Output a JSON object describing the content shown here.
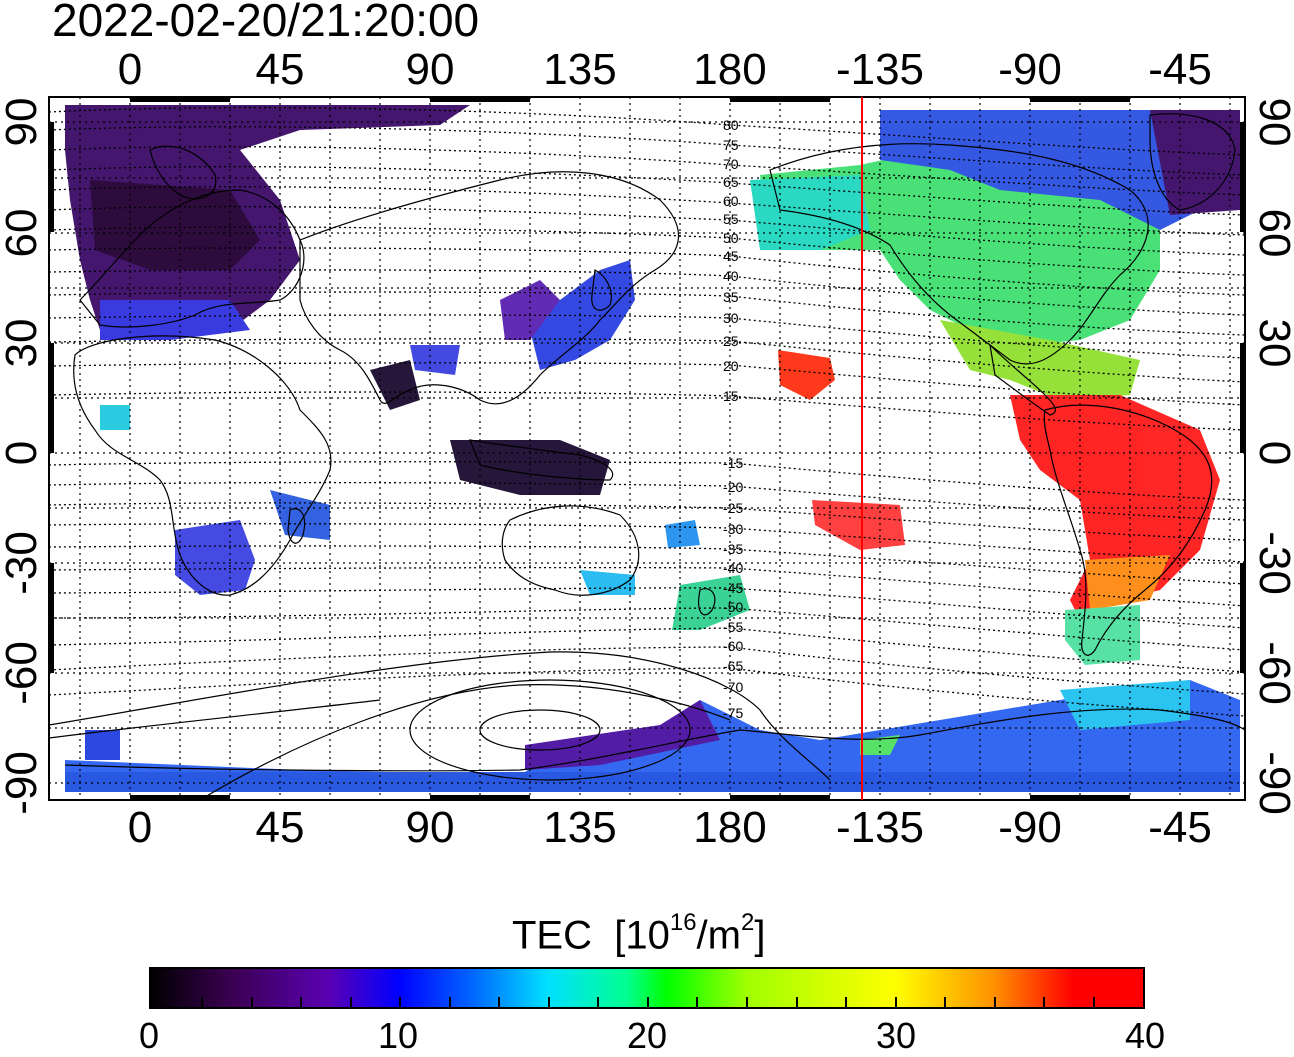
{
  "title": "2022-02-20/21:20:00",
  "axes": {
    "top_ticks": [
      "0",
      "45",
      "90",
      "135",
      "180",
      "-135",
      "-90",
      "-45"
    ],
    "bottom_ticks": [
      "0",
      "45",
      "90",
      "135",
      "180",
      "-135",
      "-90",
      "-45"
    ],
    "left_ticks": [
      "90",
      "60",
      "30",
      "0",
      "-30",
      "-60",
      "-90"
    ],
    "right_ticks": [
      "90",
      "60",
      "30",
      "0",
      "-30",
      "-60",
      "-90"
    ],
    "lon_range": [
      -20,
      340
    ],
    "lat_range": [
      -93,
      93
    ],
    "grid": "dotted"
  },
  "contour_labels": [
    "80",
    "75",
    "70",
    "65",
    "60",
    "55",
    "50",
    "45",
    "40",
    "35",
    "30",
    "25",
    "20",
    "15",
    "-15",
    "-20",
    "-25",
    "-30",
    "-35",
    "-40",
    "-45",
    "-50",
    "-55",
    "-60",
    "-65",
    "-70",
    "-75"
  ],
  "terminator_longitude": -141,
  "colorbar": {
    "title_text": "TEC",
    "title_unit_pre": "[10",
    "title_unit_exp": "16",
    "title_unit_mid": "/m",
    "title_unit_exp2": "2",
    "title_unit_post": "]",
    "ticks": [
      "0",
      "10",
      "20",
      "30",
      "40"
    ],
    "range": [
      0,
      40
    ]
  },
  "colors": {
    "terminator": "#ff0000",
    "low": "#000000",
    "high": "#ff0000"
  }
}
